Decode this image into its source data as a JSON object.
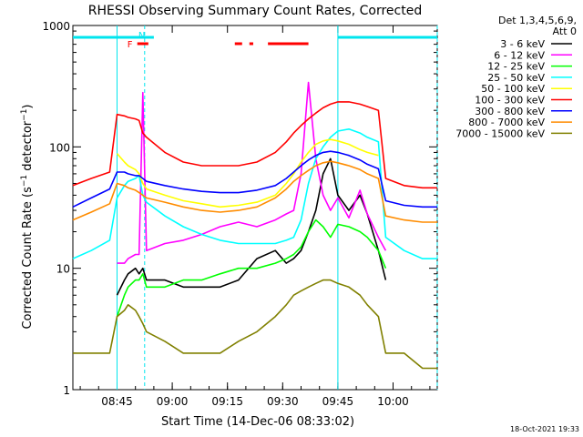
{
  "chart_data": {
    "type": "line",
    "title": "RHESSI Observing Summary Count Rates, Corrected",
    "xlabel": "Start Time (14-Dec-06 08:33:02)",
    "ylabel": "Corrected Count Rate (s⁻¹ detector⁻¹)",
    "ylabel_main": "Corrected Count Rate (s",
    "ylabel_sup1": "−1",
    "ylabel_mid": " detector",
    "ylabel_sup2": "−1",
    "ylabel_end": ")",
    "yscale": "log",
    "ylim": [
      1,
      1000
    ],
    "xlim_minutes_after_0833": [
      0,
      99
    ],
    "x_tick_labels": [
      "08:45",
      "09:00",
      "09:15",
      "09:30",
      "09:45",
      "10:00"
    ],
    "y_tick_labels": [
      "1",
      "10",
      "100",
      "1000"
    ],
    "legend_header": [
      "Det 1,3,4,5,6,9,",
      "Att 0"
    ],
    "legend_placement": "right",
    "timestamp": "18-Oct-2021 19:33",
    "flag_labels": [
      "F",
      "N"
    ],
    "x_minutes": [
      0,
      5,
      10,
      12,
      14,
      15,
      17,
      18,
      19,
      20,
      25,
      30,
      35,
      40,
      45,
      50,
      55,
      58,
      60,
      62,
      64,
      66,
      68,
      70,
      72,
      75,
      78,
      80,
      83,
      85,
      90,
      95,
      99
    ],
    "series": [
      {
        "name": "3 - 6 keV",
        "color": "#000000",
        "values": [
          null,
          null,
          null,
          6,
          8,
          9,
          10,
          9,
          10,
          8,
          8,
          7,
          7,
          7,
          8,
          12,
          14,
          11,
          12,
          14,
          20,
          30,
          60,
          80,
          40,
          30,
          40,
          28,
          14,
          8,
          null,
          null,
          null
        ]
      },
      {
        "name": "6 - 12 keV",
        "color": "#ff00ff",
        "values": [
          null,
          null,
          null,
          11,
          11,
          12,
          13,
          13,
          280,
          14,
          16,
          17,
          19,
          22,
          24,
          22,
          25,
          28,
          30,
          60,
          340,
          80,
          40,
          30,
          38,
          26,
          44,
          28,
          18,
          14,
          null,
          null,
          null
        ]
      },
      {
        "name": "12 - 25 keV",
        "color": "#00ff00",
        "values": [
          null,
          null,
          null,
          4,
          6,
          7,
          8,
          8,
          9,
          7,
          7,
          8,
          8,
          9,
          10,
          10,
          11,
          12,
          13,
          15,
          20,
          25,
          22,
          18,
          23,
          22,
          20,
          18,
          14,
          10,
          null,
          null,
          null
        ]
      },
      {
        "name": "25 - 50 keV",
        "color": "#00ffff",
        "values": [
          12,
          14,
          17,
          38,
          48,
          52,
          55,
          58,
          40,
          35,
          27,
          22,
          19,
          17,
          16,
          16,
          16,
          17,
          18,
          25,
          50,
          80,
          100,
          120,
          135,
          140,
          130,
          120,
          110,
          18,
          14,
          12,
          12
        ]
      },
      {
        "name": "50 - 100 keV",
        "color": "#ffff00",
        "values": [
          null,
          null,
          null,
          88,
          75,
          70,
          65,
          60,
          50,
          45,
          40,
          36,
          34,
          32,
          33,
          35,
          40,
          50,
          60,
          75,
          90,
          105,
          112,
          115,
          112,
          105,
          95,
          90,
          85,
          null,
          null,
          null,
          null
        ]
      },
      {
        "name": "100 - 300 keV",
        "color": "#ff0000",
        "values": [
          48,
          55,
          62,
          185,
          180,
          175,
          170,
          165,
          130,
          120,
          90,
          75,
          70,
          70,
          70,
          75,
          90,
          110,
          130,
          150,
          170,
          190,
          210,
          225,
          235,
          235,
          225,
          215,
          200,
          55,
          48,
          46,
          46
        ]
      },
      {
        "name": "300 - 800 keV",
        "color": "#0000ff",
        "values": [
          32,
          38,
          45,
          62,
          62,
          60,
          58,
          58,
          55,
          52,
          48,
          45,
          43,
          42,
          42,
          44,
          48,
          55,
          62,
          70,
          78,
          85,
          90,
          92,
          90,
          85,
          78,
          72,
          66,
          36,
          33,
          32,
          32
        ]
      },
      {
        "name": "800 - 7000 keV",
        "color": "#ff8c00",
        "values": [
          25,
          29,
          34,
          50,
          48,
          46,
          44,
          42,
          40,
          38,
          35,
          32,
          30,
          29,
          30,
          32,
          38,
          45,
          52,
          58,
          64,
          70,
          74,
          76,
          74,
          70,
          65,
          60,
          55,
          27,
          25,
          24,
          24
        ]
      },
      {
        "name": "7000 - 15000 keV",
        "color": "#808000",
        "values": [
          2,
          2,
          2,
          4,
          4.5,
          5,
          4.5,
          4,
          3.5,
          3,
          2.5,
          2,
          2,
          2,
          2.5,
          3,
          4,
          5,
          6,
          6.5,
          7,
          7.5,
          8,
          8,
          7.5,
          7,
          6,
          5,
          4,
          2,
          2,
          1.5,
          1.5
        ]
      }
    ],
    "cyan_band_segments_minutes": [
      [
        0,
        22
      ],
      [
        72,
        99
      ]
    ],
    "attenuator_segments_minutes": [
      [
        44,
        49
      ],
      [
        53,
        64
      ]
    ]
  }
}
